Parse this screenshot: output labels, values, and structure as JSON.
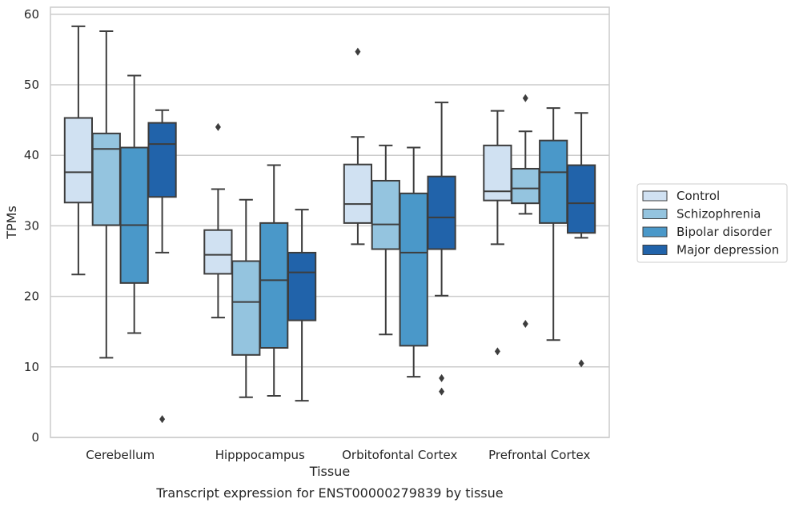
{
  "chart_data": {
    "type": "box",
    "caption": "Transcript expression for ENST00000279839 by tissue",
    "xlabel": "Tissue",
    "ylabel": "TPMs",
    "ylim": [
      0,
      61
    ],
    "yticks": [
      0,
      10,
      20,
      30,
      40,
      50,
      60
    ],
    "grid": "horizontal",
    "legend_position": "right",
    "categories": [
      "Cerebellum",
      "Hipppocampus",
      "Orbitofontal Cortex",
      "Prefrontal Cortex"
    ],
    "series": [
      {
        "name": "Control",
        "color": "#d0e1f2",
        "boxes": [
          {
            "whisker_low": 23.1,
            "q1": 33.3,
            "median": 37.6,
            "q3": 45.3,
            "whisker_high": 58.3,
            "outliers": []
          },
          {
            "whisker_low": 17.0,
            "q1": 23.2,
            "median": 25.9,
            "q3": 29.4,
            "whisker_high": 35.2,
            "outliers": [
              44.0
            ]
          },
          {
            "whisker_low": 27.4,
            "q1": 30.4,
            "median": 33.1,
            "q3": 38.7,
            "whisker_high": 42.6,
            "outliers": [
              54.7
            ]
          },
          {
            "whisker_low": 27.4,
            "q1": 33.6,
            "median": 34.9,
            "q3": 41.4,
            "whisker_high": 46.3,
            "outliers": [
              12.2
            ]
          }
        ]
      },
      {
        "name": "Schizophrenia",
        "color": "#94c4df",
        "boxes": [
          {
            "whisker_low": 11.3,
            "q1": 30.1,
            "median": 40.9,
            "q3": 43.1,
            "whisker_high": 57.6,
            "outliers": []
          },
          {
            "whisker_low": 5.7,
            "q1": 11.7,
            "median": 19.2,
            "q3": 25.0,
            "whisker_high": 33.7,
            "outliers": []
          },
          {
            "whisker_low": 14.6,
            "q1": 26.7,
            "median": 30.2,
            "q3": 36.4,
            "whisker_high": 41.4,
            "outliers": []
          },
          {
            "whisker_low": 31.7,
            "q1": 33.2,
            "median": 35.3,
            "q3": 38.1,
            "whisker_high": 43.4,
            "outliers": [
              48.1,
              16.1
            ]
          }
        ]
      },
      {
        "name": "Bipolar disorder",
        "color": "#4a98c9",
        "boxes": [
          {
            "whisker_low": 14.8,
            "q1": 21.9,
            "median": 30.1,
            "q3": 41.1,
            "whisker_high": 51.3,
            "outliers": []
          },
          {
            "whisker_low": 5.9,
            "q1": 12.7,
            "median": 22.3,
            "q3": 30.4,
            "whisker_high": 38.6,
            "outliers": []
          },
          {
            "whisker_low": 8.6,
            "q1": 13.0,
            "median": 26.2,
            "q3": 34.6,
            "whisker_high": 41.1,
            "outliers": []
          },
          {
            "whisker_low": 13.8,
            "q1": 30.4,
            "median": 37.6,
            "q3": 42.1,
            "whisker_high": 46.7,
            "outliers": []
          }
        ]
      },
      {
        "name": "Major depression",
        "color": "#2163aa",
        "boxes": [
          {
            "whisker_low": 26.2,
            "q1": 34.1,
            "median": 41.6,
            "q3": 44.6,
            "whisker_high": 46.4,
            "outliers": [
              2.6
            ]
          },
          {
            "whisker_low": 5.2,
            "q1": 16.6,
            "median": 23.4,
            "q3": 26.2,
            "whisker_high": 32.3,
            "outliers": []
          },
          {
            "whisker_low": 20.1,
            "q1": 26.7,
            "median": 31.2,
            "q3": 37.0,
            "whisker_high": 47.5,
            "outliers": [
              8.4,
              6.5
            ]
          },
          {
            "whisker_low": 28.3,
            "q1": 29.0,
            "median": 33.2,
            "q3": 38.6,
            "whisker_high": 46.0,
            "outliers": [
              10.5
            ]
          }
        ]
      }
    ]
  }
}
